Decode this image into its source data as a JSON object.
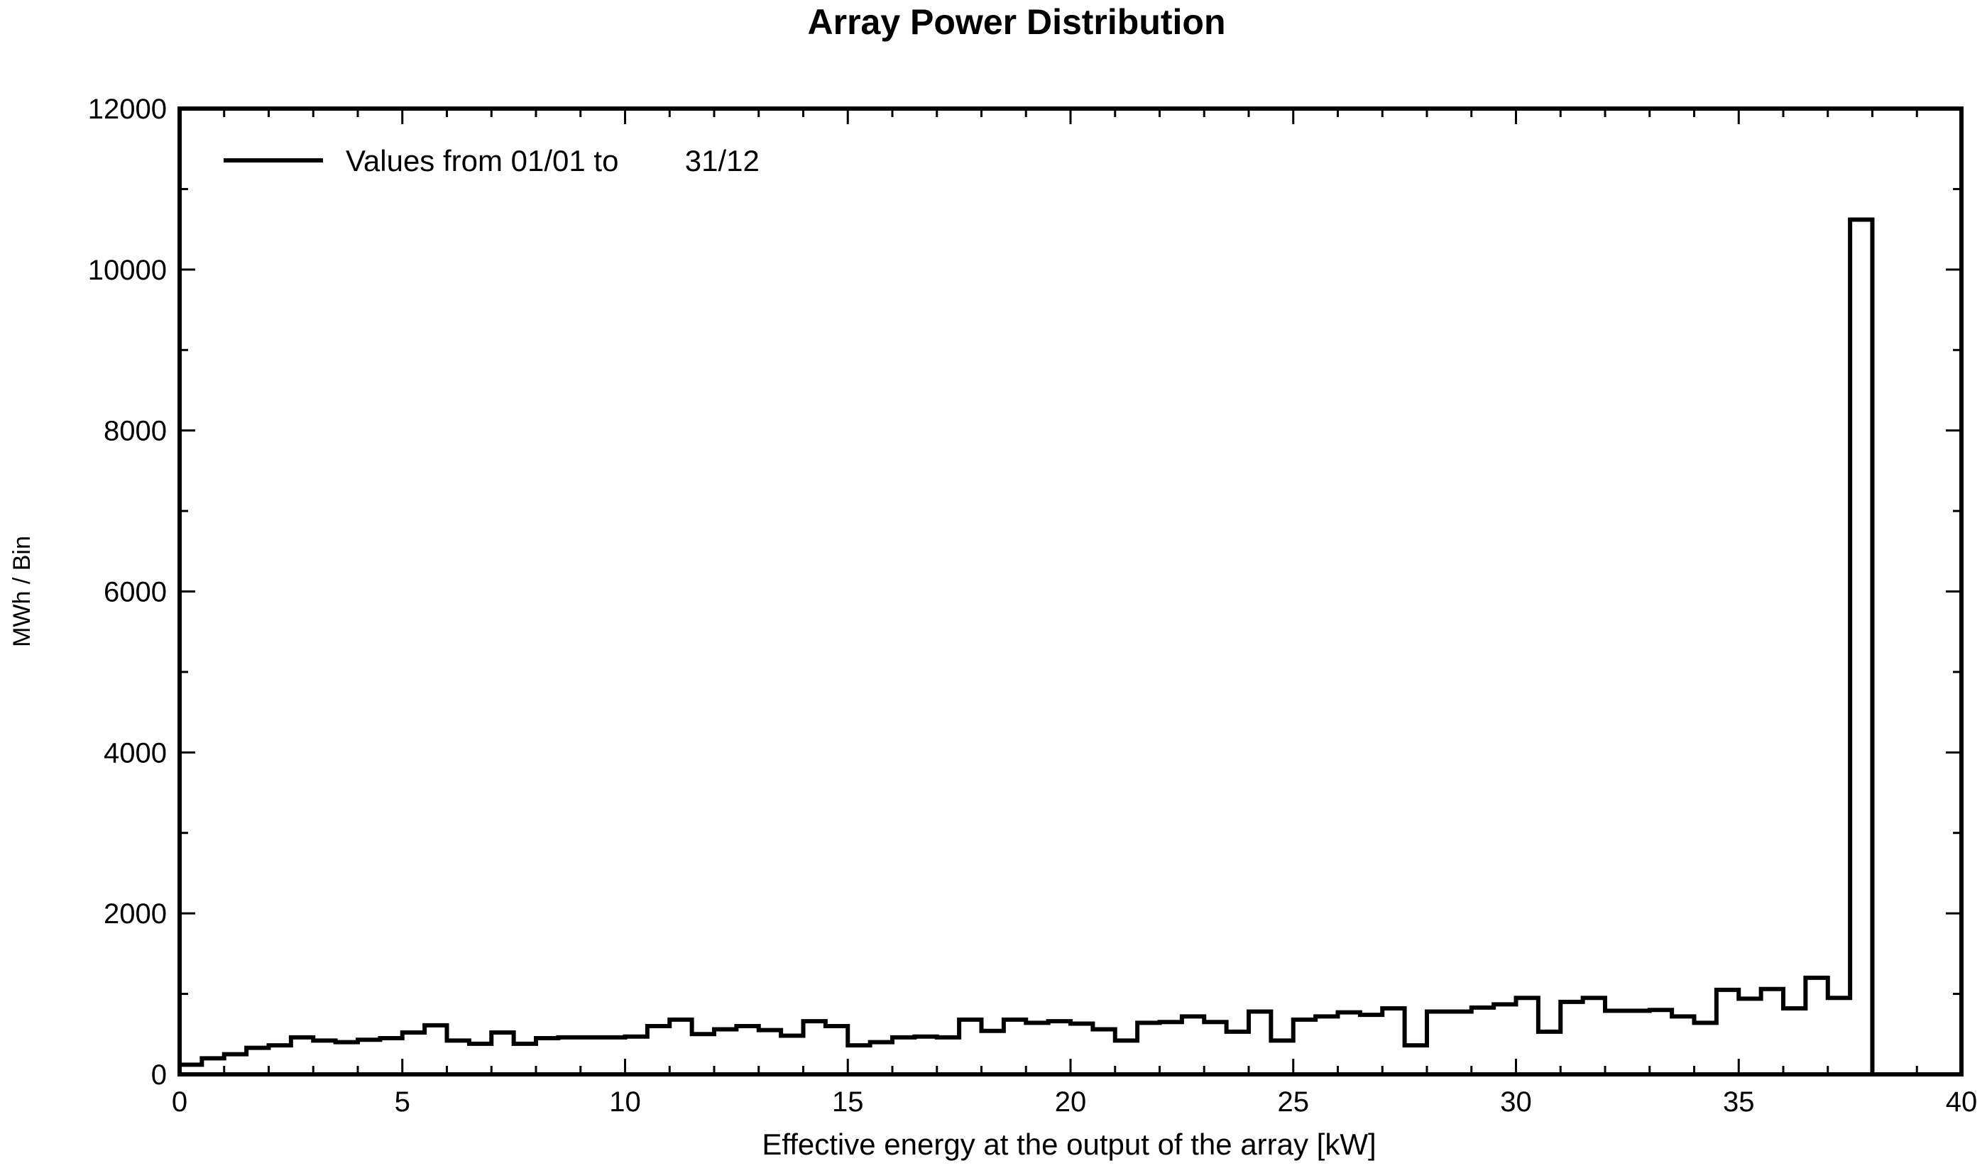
{
  "chart_data": {
    "type": "line",
    "title": "Array Power Distribution",
    "xlabel": "Effective energy at the output of the array [kW]",
    "ylabel": "MWh / Bin",
    "xlim": [
      0,
      40
    ],
    "ylim": [
      0,
      12000
    ],
    "x_ticks": [
      "0",
      "5",
      "10",
      "15",
      "20",
      "25",
      "30",
      "35",
      "40"
    ],
    "y_ticks": [
      "0",
      "2000",
      "4000",
      "6000",
      "8000",
      "10000",
      "12000"
    ],
    "grid": false,
    "legend_position": "top-left",
    "bin_width": 0.5,
    "series": [
      {
        "name": "Values from 01/01 to        31/12",
        "color": "#000000",
        "x_start": 0,
        "values": [
          120,
          200,
          250,
          330,
          360,
          460,
          420,
          400,
          430,
          450,
          520,
          610,
          420,
          380,
          520,
          380,
          450,
          460,
          460,
          460,
          470,
          600,
          680,
          500,
          560,
          600,
          550,
          480,
          660,
          600,
          360,
          400,
          460,
          470,
          460,
          680,
          540,
          680,
          640,
          660,
          630,
          560,
          420,
          640,
          650,
          720,
          650,
          530,
          780,
          420,
          680,
          720,
          770,
          740,
          820,
          360,
          780,
          780,
          830,
          870,
          950,
          530,
          900,
          950,
          790,
          790,
          800,
          720,
          640,
          1050,
          940,
          1060,
          820,
          1200,
          950,
          10620,
          0
        ]
      }
    ]
  }
}
